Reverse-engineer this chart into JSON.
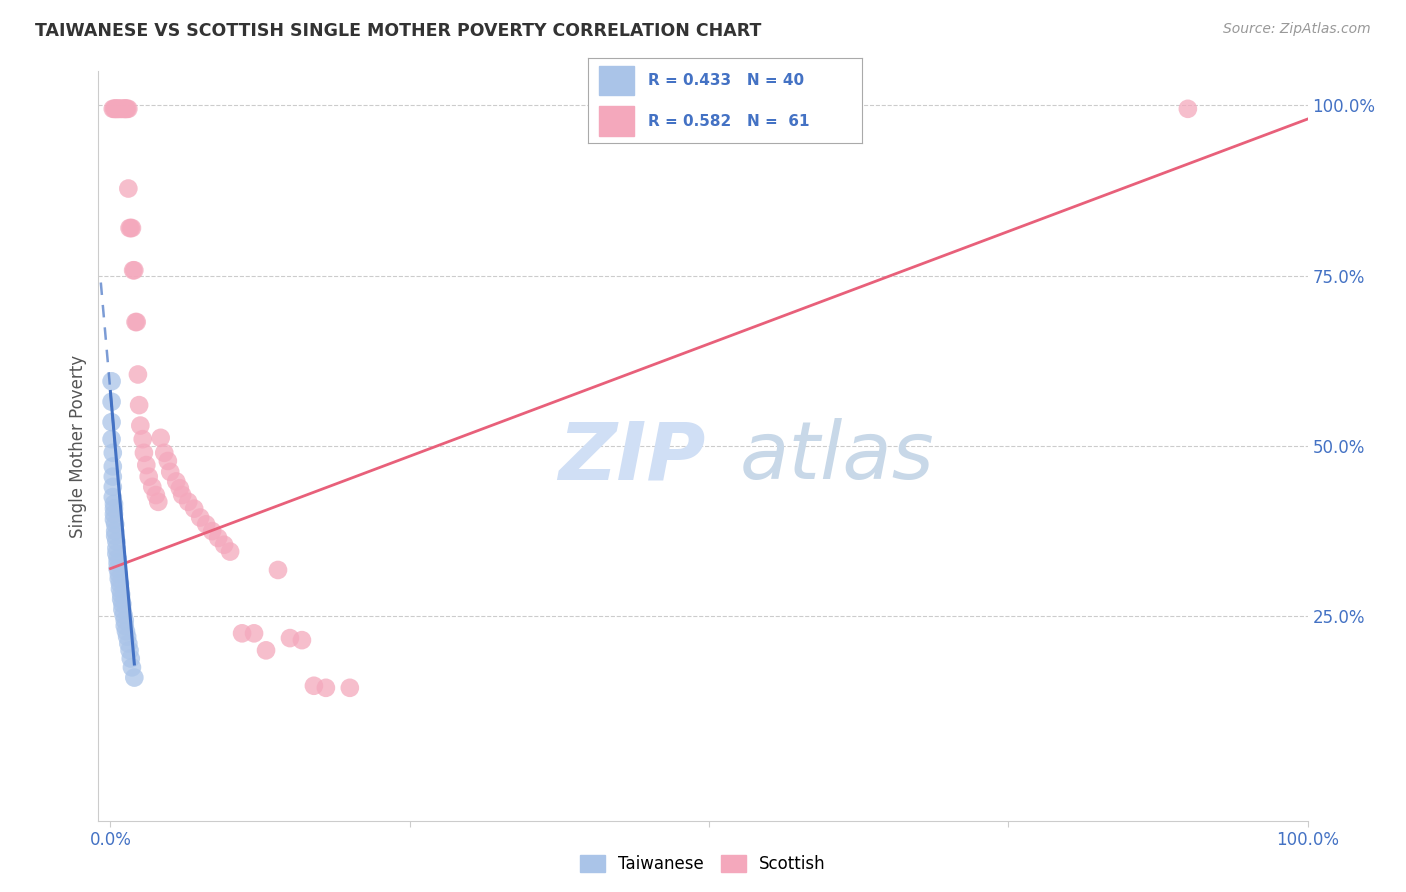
{
  "title": "TAIWANESE VS SCOTTISH SINGLE MOTHER POVERTY CORRELATION CHART",
  "source": "Source: ZipAtlas.com",
  "ylabel": "Single Mother Poverty",
  "title_color": "#333333",
  "source_color": "#999999",
  "ytick_color": "#4472c4",
  "xtick_color": "#4472c4",
  "grid_color": "#cccccc",
  "background_color": "#ffffff",
  "taiwanese_color": "#aac4e8",
  "scottish_color": "#f4a8bc",
  "taiwanese_line_color": "#4472c4",
  "scottish_line_color": "#e8607a",
  "watermark_zip_color": "#d0dff5",
  "watermark_atlas_color": "#c8d8e8",
  "tw_R": 0.433,
  "tw_N": 40,
  "sc_R": 0.582,
  "sc_N": 61,
  "xlim": [
    0.0,
    1.0
  ],
  "ylim": [
    0.0,
    1.05
  ],
  "xgrid": [
    0.25,
    0.5,
    0.75
  ],
  "ygrid": [
    0.25,
    0.5,
    0.75,
    1.0
  ],
  "tw_x": [
    0.001,
    0.001,
    0.001,
    0.001,
    0.002,
    0.002,
    0.002,
    0.002,
    0.002,
    0.003,
    0.003,
    0.003,
    0.003,
    0.004,
    0.004,
    0.004,
    0.005,
    0.005,
    0.005,
    0.006,
    0.006,
    0.006,
    0.007,
    0.007,
    0.008,
    0.008,
    0.009,
    0.009,
    0.01,
    0.01,
    0.011,
    0.012,
    0.012,
    0.013,
    0.014,
    0.015,
    0.016,
    0.017,
    0.018,
    0.02
  ],
  "tw_y": [
    0.595,
    0.565,
    0.535,
    0.51,
    0.49,
    0.47,
    0.455,
    0.44,
    0.425,
    0.415,
    0.408,
    0.4,
    0.392,
    0.385,
    0.375,
    0.368,
    0.36,
    0.35,
    0.342,
    0.335,
    0.328,
    0.32,
    0.312,
    0.305,
    0.298,
    0.29,
    0.282,
    0.275,
    0.268,
    0.26,
    0.252,
    0.244,
    0.236,
    0.228,
    0.22,
    0.21,
    0.2,
    0.188,
    0.175,
    0.16
  ],
  "sc_x": [
    0.002,
    0.003,
    0.004,
    0.004,
    0.005,
    0.006,
    0.006,
    0.007,
    0.008,
    0.009,
    0.01,
    0.011,
    0.012,
    0.012,
    0.013,
    0.013,
    0.014,
    0.015,
    0.015,
    0.016,
    0.017,
    0.018,
    0.019,
    0.02,
    0.021,
    0.022,
    0.023,
    0.024,
    0.025,
    0.027,
    0.028,
    0.03,
    0.032,
    0.035,
    0.038,
    0.04,
    0.042,
    0.045,
    0.048,
    0.05,
    0.055,
    0.058,
    0.06,
    0.065,
    0.07,
    0.075,
    0.08,
    0.085,
    0.09,
    0.095,
    0.1,
    0.11,
    0.12,
    0.13,
    0.14,
    0.15,
    0.16,
    0.17,
    0.18,
    0.2,
    0.9
  ],
  "sc_y": [
    0.995,
    0.995,
    0.995,
    0.995,
    0.995,
    0.995,
    0.995,
    0.995,
    0.995,
    0.995,
    0.995,
    0.995,
    0.995,
    0.995,
    0.995,
    0.995,
    0.995,
    0.995,
    0.878,
    0.82,
    0.82,
    0.82,
    0.758,
    0.758,
    0.682,
    0.682,
    0.605,
    0.56,
    0.53,
    0.51,
    0.49,
    0.472,
    0.455,
    0.44,
    0.428,
    0.418,
    0.512,
    0.49,
    0.478,
    0.462,
    0.448,
    0.438,
    0.428,
    0.418,
    0.408,
    0.395,
    0.385,
    0.375,
    0.365,
    0.355,
    0.345,
    0.225,
    0.225,
    0.2,
    0.318,
    0.218,
    0.215,
    0.148,
    0.145,
    0.145,
    0.995
  ],
  "tw_line_x": [
    -0.005,
    0.022
  ],
  "tw_line_y": [
    0.68,
    0.14
  ],
  "sc_line_x": [
    0.0,
    1.0
  ],
  "sc_line_y": [
    0.32,
    0.98
  ]
}
